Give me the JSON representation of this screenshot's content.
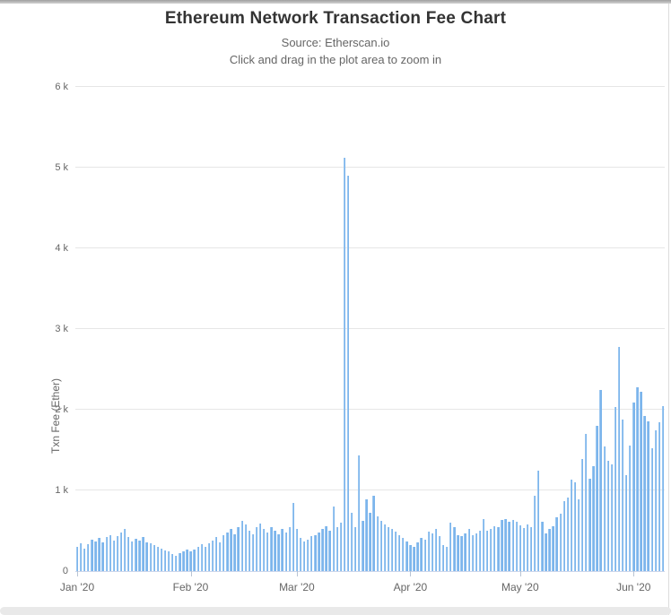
{
  "chart_data": {
    "type": "bar",
    "title": "Ethereum Network Transaction Fee Chart",
    "subtitle_source": "Source: Etherscan.io",
    "subtitle_hint": "Click and drag in the plot area to zoom in",
    "ylabel": "Txn Fee (Ether)",
    "ylim": [
      0,
      6000
    ],
    "ytick_values": [
      0,
      1000,
      2000,
      3000,
      4000,
      5000,
      6000
    ],
    "ytick_labels": [
      "0",
      "1 k",
      "2 k",
      "3 k",
      "4 k",
      "5 k",
      "6 k"
    ],
    "xtick_labels": [
      "Jan '20",
      "Feb '20",
      "Mar '20",
      "Apr '20",
      "May '20",
      "Jun '20"
    ],
    "xtick_day_index": [
      0,
      31,
      60,
      91,
      121,
      152
    ],
    "x_unit": "day",
    "grid": "horizontal",
    "legend": "none",
    "bar_color": "#7cb5ec",
    "grid_color": "#e6e6e6",
    "axis_line_color": "#ccd6eb",
    "values": [
      300,
      340,
      280,
      330,
      390,
      370,
      410,
      360,
      420,
      440,
      380,
      430,
      480,
      520,
      420,
      370,
      400,
      380,
      420,
      360,
      340,
      320,
      300,
      280,
      260,
      240,
      210,
      190,
      220,
      250,
      270,
      240,
      270,
      300,
      330,
      300,
      350,
      380,
      420,
      360,
      440,
      480,
      520,
      460,
      550,
      620,
      580,
      500,
      460,
      550,
      590,
      520,
      480,
      550,
      500,
      460,
      520,
      480,
      550,
      850,
      520,
      410,
      370,
      390,
      430,
      450,
      480,
      520,
      560,
      500,
      800,
      550,
      600,
      5120,
      4900,
      720,
      550,
      1430,
      620,
      890,
      720,
      930,
      680,
      620,
      580,
      550,
      520,
      490,
      450,
      410,
      370,
      320,
      300,
      360,
      410,
      390,
      490,
      470,
      520,
      430,
      320,
      300,
      600,
      540,
      450,
      430,
      470,
      520,
      450,
      470,
      500,
      650,
      500,
      520,
      560,
      540,
      630,
      650,
      610,
      630,
      610,
      570,
      530,
      580,
      550,
      930,
      1240,
      610,
      470,
      520,
      560,
      670,
      710,
      870,
      910,
      1130,
      1100,
      890,
      1390,
      1700,
      1150,
      1300,
      1800,
      2250,
      1550,
      1370,
      1320,
      2030,
      2780,
      1880,
      1190,
      1560,
      2090,
      2280,
      2220,
      1920,
      1860,
      1520,
      1750,
      1840,
      2040
    ]
  }
}
